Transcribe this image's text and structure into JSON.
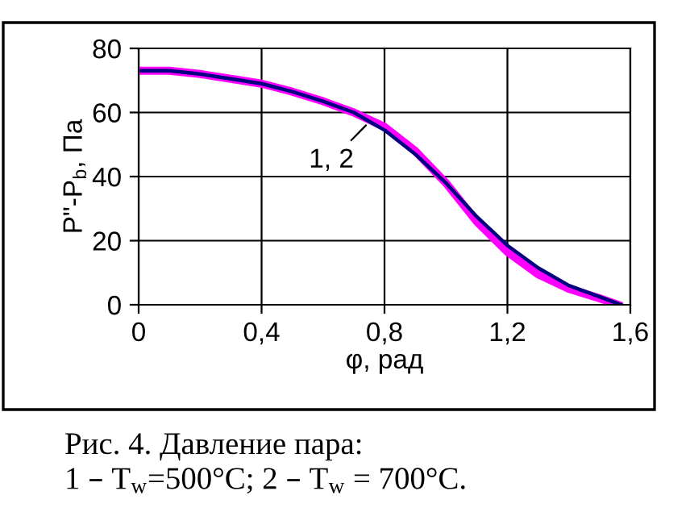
{
  "chart_data": {
    "type": "line",
    "xlabel": "φ, рад",
    "ylabel": "P\"-P$_{b}$, Па",
    "xlim": [
      0,
      1.6
    ],
    "ylim": [
      0,
      80
    ],
    "xticks": [
      0,
      {
        "value": 0.4,
        "label": "0,4"
      },
      {
        "value": 0.8,
        "label": "0,8"
      },
      {
        "value": 1.2,
        "label": "1,2"
      },
      {
        "value": 1.6,
        "label": "1,6"
      }
    ],
    "yticks": [
      0,
      20,
      40,
      60,
      80
    ],
    "grid": true,
    "line_style": "solid",
    "marker": "none",
    "series": [
      {
        "color": "#ff00ff",
        "x": [
          0.01,
          0.1,
          0.2,
          0.3,
          0.4,
          0.5,
          0.6,
          0.7,
          0.8,
          0.9,
          1.0,
          1.1,
          1.2,
          1.3,
          1.4,
          1.5,
          1.56
        ],
        "values": [
          73,
          73,
          72,
          70.5,
          69,
          66.5,
          63.5,
          60,
          55.5,
          48,
          38,
          26,
          16.5,
          9.5,
          5,
          2,
          0
        ]
      },
      {
        "color": "#000080",
        "x": [
          0.01,
          0.1,
          0.2,
          0.3,
          0.4,
          0.5,
          0.6,
          0.7,
          0.8,
          0.9,
          1.0,
          1.1,
          1.2,
          1.3,
          1.4,
          1.5,
          1.57
        ],
        "values": [
          73,
          73,
          72,
          70.5,
          69,
          66.5,
          63.5,
          60,
          54.5,
          47,
          38,
          27.5,
          18.5,
          11.5,
          6,
          2.5,
          0
        ]
      }
    ],
    "annotations": [
      {
        "text": "1, 2",
        "x": 0.75,
        "y": 57
      },
      "Рис. 4. Давление пара:\n1 – T$_{w}$=500°C; 2 – T$_{w}$ = 700°C."
    ]
  }
}
